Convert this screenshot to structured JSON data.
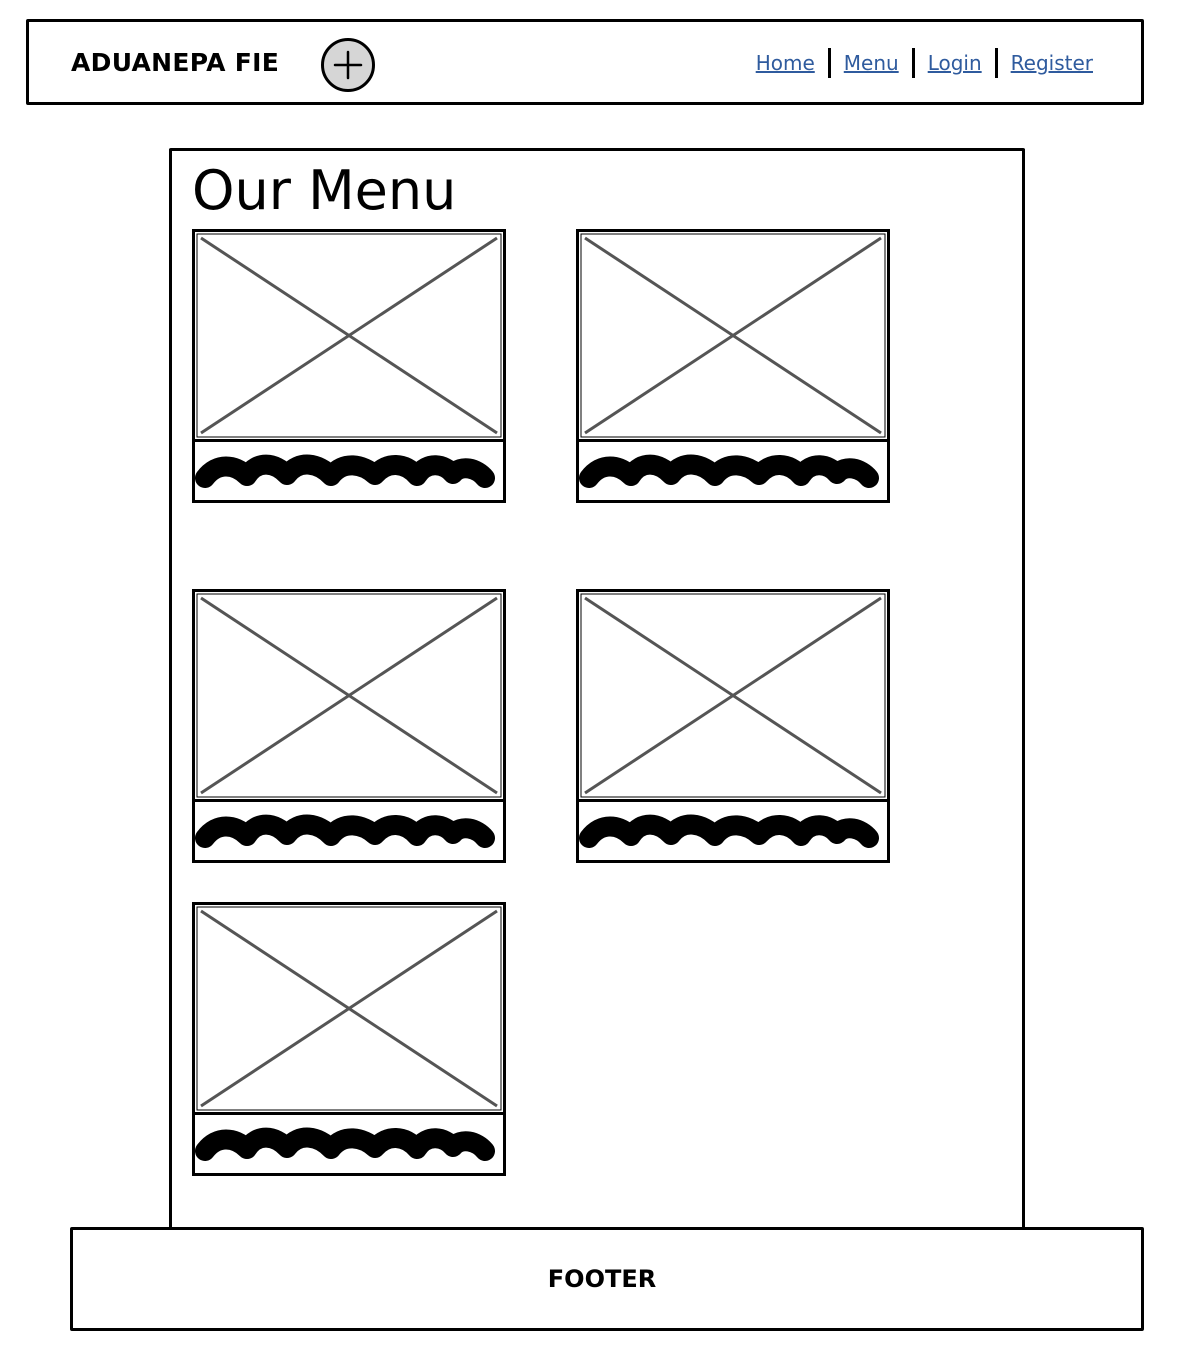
{
  "header": {
    "brand": "ADUANEPA FIE",
    "add_icon": "plus-circle-icon",
    "nav": [
      {
        "label": "Home"
      },
      {
        "label": "Menu"
      },
      {
        "label": "Login"
      },
      {
        "label": "Register"
      }
    ]
  },
  "main": {
    "title": "Our Menu",
    "cards": [
      {
        "image_icon": "image-placeholder-icon",
        "caption_icon": "scribble-text-placeholder-icon"
      },
      {
        "image_icon": "image-placeholder-icon",
        "caption_icon": "scribble-text-placeholder-icon"
      },
      {
        "image_icon": "image-placeholder-icon",
        "caption_icon": "scribble-text-placeholder-icon"
      },
      {
        "image_icon": "image-placeholder-icon",
        "caption_icon": "scribble-text-placeholder-icon"
      },
      {
        "image_icon": "image-placeholder-icon",
        "caption_icon": "scribble-text-placeholder-icon"
      }
    ]
  },
  "footer": {
    "label": "FOOTER"
  },
  "colors": {
    "link": "#2f5b9e",
    "placeholder_line": "#555555",
    "add_button_fill": "#d6d6d6"
  }
}
